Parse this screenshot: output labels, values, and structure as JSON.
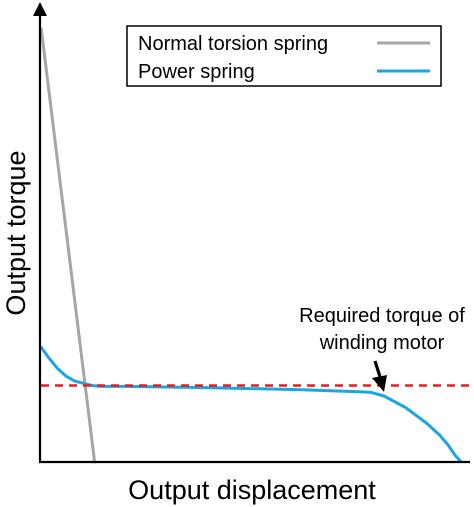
{
  "chart_data": {
    "type": "line",
    "xlabel": "Output displacement",
    "ylabel": "Output torque",
    "xlim": [
      0,
      100
    ],
    "ylim": [
      0,
      100
    ],
    "grid": false,
    "legend_position": "top-right",
    "series": [
      {
        "name": "Normal torsion spring",
        "color": "#a6a6a6",
        "points": [
          [
            0.3,
            94.5
          ],
          [
            12.7,
            0
          ]
        ]
      },
      {
        "name": "Power spring",
        "color": "#1ba6e3",
        "points": [
          [
            0.3,
            25
          ],
          [
            2,
            22.8
          ],
          [
            4,
            20.5
          ],
          [
            6,
            18.8
          ],
          [
            8,
            17.7
          ],
          [
            10,
            17.2
          ],
          [
            12,
            16.7
          ],
          [
            14,
            16.5
          ],
          [
            20,
            16.5
          ],
          [
            40,
            16.2
          ],
          [
            60,
            15.8
          ],
          [
            75,
            15.3
          ],
          [
            77,
            15.2
          ],
          [
            80,
            14.4
          ],
          [
            85,
            11.9
          ],
          [
            90,
            8.4
          ],
          [
            93,
            5.8
          ],
          [
            95,
            3.6
          ],
          [
            96.5,
            1.5
          ],
          [
            97.8,
            0.2
          ]
        ]
      }
    ],
    "reference_lines": [
      {
        "label": "Required torque of winding motor",
        "label_lines": [
          "Required torque of",
          "winding motor"
        ],
        "y": 16.7,
        "color": "#e02020",
        "style": "dashed"
      }
    ]
  }
}
